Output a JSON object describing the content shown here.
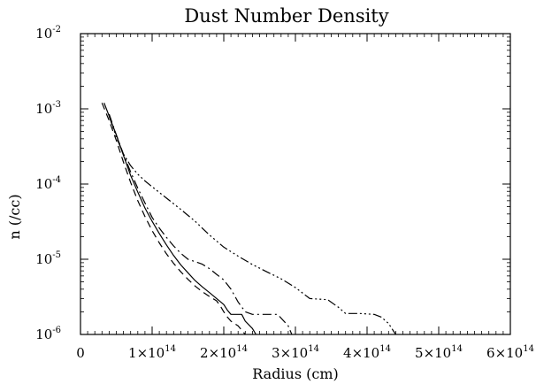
{
  "chart_data": {
    "type": "line",
    "title": "Dust Number Density",
    "xlabel": "Radius (cm)",
    "ylabel": "n (/cc)",
    "xlim": [
      0,
      600000000000000.0
    ],
    "ylim": [
      1e-06,
      0.01
    ],
    "yscale": "log",
    "grid": false,
    "x_ticks": [
      {
        "value": 0,
        "base": "0",
        "exp": ""
      },
      {
        "value": 100000000000000.0,
        "base": "1×10",
        "exp": "14"
      },
      {
        "value": 200000000000000.0,
        "base": "2×10",
        "exp": "14"
      },
      {
        "value": 300000000000000.0,
        "base": "3×10",
        "exp": "14"
      },
      {
        "value": 400000000000000.0,
        "base": "4×10",
        "exp": "14"
      },
      {
        "value": 500000000000000.0,
        "base": "5×10",
        "exp": "14"
      },
      {
        "value": 600000000000000.0,
        "base": "6×10",
        "exp": "14"
      }
    ],
    "y_ticks": [
      {
        "value": 1e-06,
        "base": "10",
        "exp": "-6"
      },
      {
        "value": 1e-05,
        "base": "10",
        "exp": "-5"
      },
      {
        "value": 0.0001,
        "base": "10",
        "exp": "-4"
      },
      {
        "value": 0.001,
        "base": "10",
        "exp": "-3"
      },
      {
        "value": 0.01,
        "base": "10",
        "exp": "-2"
      }
    ],
    "series": [
      {
        "dash": "none",
        "points": [
          [
            33000000000000.0,
            0.0012
          ],
          [
            40000000000000.0,
            0.0008
          ],
          [
            50000000000000.0,
            0.00045
          ],
          [
            60000000000000.0,
            0.00024
          ],
          [
            70000000000000.0,
            0.00013
          ],
          [
            80000000000000.0,
            7.8e-05
          ],
          [
            90000000000000.0,
            4.8e-05
          ],
          [
            100000000000000.0,
            3.2e-05
          ],
          [
            110000000000000.0,
            2.2e-05
          ],
          [
            120000000000000.0,
            1.55e-05
          ],
          [
            130000000000000.0,
            1.12e-05
          ],
          [
            140000000000000.0,
            8.4e-06
          ],
          [
            150000000000000.0,
            6.6e-06
          ],
          [
            160000000000000.0,
            5.2e-06
          ],
          [
            170000000000000.0,
            4.3e-06
          ],
          [
            180000000000000.0,
            3.6e-06
          ],
          [
            190000000000000.0,
            3e-06
          ],
          [
            200000000000000.0,
            2.5e-06
          ],
          [
            205000000000000.0,
            2.1e-06
          ],
          [
            210000000000000.0,
            1.85e-06
          ],
          [
            225000000000000.0,
            1.85e-06
          ],
          [
            230000000000000.0,
            1.5e-06
          ],
          [
            240000000000000.0,
            1.2e-06
          ],
          [
            245000000000000.0,
            1e-06
          ]
        ]
      },
      {
        "dash": "8,5",
        "points": [
          [
            30000000000000.0,
            0.0012
          ],
          [
            40000000000000.0,
            0.0007
          ],
          [
            50000000000000.0,
            0.00038
          ],
          [
            60000000000000.0,
            0.000195
          ],
          [
            70000000000000.0,
            0.000105
          ],
          [
            80000000000000.0,
            6e-05
          ],
          [
            90000000000000.0,
            3.7e-05
          ],
          [
            100000000000000.0,
            2.4e-05
          ],
          [
            110000000000000.0,
            1.65e-05
          ],
          [
            120000000000000.0,
            1.18e-05
          ],
          [
            130000000000000.0,
            8.8e-06
          ],
          [
            140000000000000.0,
            6.8e-06
          ],
          [
            150000000000000.0,
            5.4e-06
          ],
          [
            160000000000000.0,
            4.4e-06
          ],
          [
            170000000000000.0,
            3.7e-06
          ],
          [
            180000000000000.0,
            3.2e-06
          ],
          [
            190000000000000.0,
            2.8e-06
          ],
          [
            195000000000000.0,
            2.4e-06
          ],
          [
            200000000000000.0,
            2e-06
          ],
          [
            205000000000000.0,
            1.7e-06
          ],
          [
            210000000000000.0,
            1.5e-06
          ],
          [
            220000000000000.0,
            1.3e-06
          ],
          [
            230000000000000.0,
            1e-06
          ]
        ]
      },
      {
        "dash": "10,4,2,4",
        "points": [
          [
            40000000000000.0,
            0.00085
          ],
          [
            50000000000000.0,
            0.00045
          ],
          [
            60000000000000.0,
            0.00025
          ],
          [
            70000000000000.0,
            0.000145
          ],
          [
            80000000000000.0,
            8.8e-05
          ],
          [
            90000000000000.0,
            5.6e-05
          ],
          [
            100000000000000.0,
            3.6e-05
          ],
          [
            110000000000000.0,
            2.6e-05
          ],
          [
            120000000000000.0,
            1.95e-05
          ],
          [
            130000000000000.0,
            1.5e-05
          ],
          [
            140000000000000.0,
            1.2e-05
          ],
          [
            150000000000000.0,
            1e-05
          ],
          [
            160000000000000.0,
            9.3e-06
          ],
          [
            170000000000000.0,
            8.6e-06
          ],
          [
            180000000000000.0,
            7.5e-06
          ],
          [
            190000000000000.0,
            6.3e-06
          ],
          [
            200000000000000.0,
            5.3e-06
          ],
          [
            210000000000000.0,
            4e-06
          ],
          [
            220000000000000.0,
            2.7e-06
          ],
          [
            230000000000000.0,
            2e-06
          ],
          [
            240000000000000.0,
            1.85e-06
          ],
          [
            250000000000000.0,
            1.85e-06
          ],
          [
            260000000000000.0,
            1.85e-06
          ],
          [
            275000000000000.0,
            1.85e-06
          ],
          [
            290000000000000.0,
            1.3e-06
          ],
          [
            295000000000000.0,
            1e-06
          ]
        ]
      },
      {
        "dash": "10,3,2,3,2,3,2,3",
        "points": [
          [
            40000000000000.0,
            0.0008
          ],
          [
            50000000000000.0,
            0.00042
          ],
          [
            60000000000000.0,
            0.00025
          ],
          [
            70000000000000.0,
            0.000175
          ],
          [
            80000000000000.0,
            0.000135
          ],
          [
            90000000000000.0,
            0.00011
          ],
          [
            100000000000000.0,
            9.2e-05
          ],
          [
            120000000000000.0,
            6.5e-05
          ],
          [
            140000000000000.0,
            4.6e-05
          ],
          [
            160000000000000.0,
            3.2e-05
          ],
          [
            180000000000000.0,
            2.1e-05
          ],
          [
            200000000000000.0,
            1.45e-05
          ],
          [
            220000000000000.0,
            1.1e-05
          ],
          [
            240000000000000.0,
            8.5e-06
          ],
          [
            260000000000000.0,
            6.8e-06
          ],
          [
            280000000000000.0,
            5.5e-06
          ],
          [
            300000000000000.0,
            4.2e-06
          ],
          [
            320000000000000.0,
            3e-06
          ],
          [
            345000000000000.0,
            2.9e-06
          ],
          [
            360000000000000.0,
            2.3e-06
          ],
          [
            370000000000000.0,
            1.9e-06
          ],
          [
            390000000000000.0,
            1.9e-06
          ],
          [
            410000000000000.0,
            1.85e-06
          ],
          [
            420000000000000.0,
            1.7e-06
          ],
          [
            430000000000000.0,
            1.4e-06
          ],
          [
            440000000000000.0,
            1e-06
          ]
        ]
      }
    ]
  }
}
